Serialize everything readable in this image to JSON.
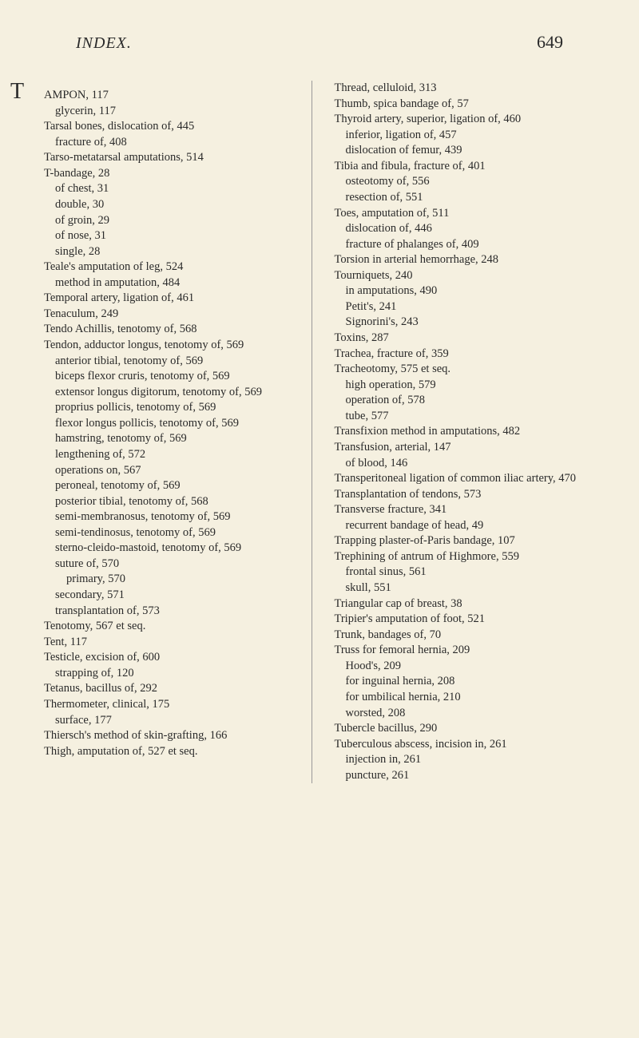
{
  "header": {
    "title": "INDEX.",
    "page_number": "649"
  },
  "styling": {
    "background_color": "#f5f0e0",
    "text_color": "#2a2a2a",
    "font_family": "Georgia, Times New Roman, serif",
    "body_font_size": 14.5,
    "header_title_size": 20,
    "page_number_size": 22,
    "initial_cap_size": 28,
    "line_height": 1.35,
    "column_separator_color": "#999"
  },
  "left_column": {
    "entries": [
      {
        "text": "TAMPON, 117",
        "initial": "T",
        "rest": "AMPON, 117",
        "level": 0,
        "first": true
      },
      {
        "text": "glycerin, 117",
        "level": 1
      },
      {
        "text": "Tarsal bones, dislocation of, 445",
        "level": 0
      },
      {
        "text": "fracture of, 408",
        "level": 1
      },
      {
        "text": "Tarso-metatarsal amputations, 514",
        "level": 0
      },
      {
        "text": "T-bandage, 28",
        "level": 0
      },
      {
        "text": "of chest, 31",
        "level": 1
      },
      {
        "text": "double, 30",
        "level": 1
      },
      {
        "text": "of groin, 29",
        "level": 1
      },
      {
        "text": "of nose, 31",
        "level": 1
      },
      {
        "text": "single, 28",
        "level": 1
      },
      {
        "text": "Teale's amputation of leg, 524",
        "level": 0
      },
      {
        "text": "method in amputation, 484",
        "level": 1
      },
      {
        "text": "Temporal artery, ligation of, 461",
        "level": 0
      },
      {
        "text": "Tenaculum, 249",
        "level": 0
      },
      {
        "text": "Tendo Achillis, tenotomy of, 568",
        "level": 0
      },
      {
        "text": "Tendon, adductor longus, tenotomy of, 569",
        "level": 0
      },
      {
        "text": "anterior tibial, tenotomy of, 569",
        "level": 1
      },
      {
        "text": "biceps flexor cruris, tenotomy of, 569",
        "level": 1
      },
      {
        "text": "extensor longus digitorum, tenotomy of, 569",
        "level": 1
      },
      {
        "text": "proprius pollicis, tenotomy of, 569",
        "level": 1
      },
      {
        "text": "flexor longus pollicis, tenotomy of, 569",
        "level": 1
      },
      {
        "text": "hamstring, tenotomy of, 569",
        "level": 1
      },
      {
        "text": "lengthening of, 572",
        "level": 1
      },
      {
        "text": "operations on, 567",
        "level": 1
      },
      {
        "text": "peroneal, tenotomy of, 569",
        "level": 1
      },
      {
        "text": "posterior tibial, tenotomy of, 568",
        "level": 1
      },
      {
        "text": "semi-membranosus, tenotomy of, 569",
        "level": 1
      },
      {
        "text": "semi-tendinosus, tenotomy of, 569",
        "level": 1
      },
      {
        "text": "sterno-cleido-mastoid, tenotomy of, 569",
        "level": 1
      },
      {
        "text": "suture of, 570",
        "level": 1
      },
      {
        "text": "primary, 570",
        "level": 2
      },
      {
        "text": "secondary, 571",
        "level": 1
      },
      {
        "text": "transplantation of, 573",
        "level": 1
      },
      {
        "text": "Tenotomy, 567 et seq.",
        "level": 0
      },
      {
        "text": "Tent, 117",
        "level": 0
      },
      {
        "text": "Testicle, excision of, 600",
        "level": 0
      },
      {
        "text": "strapping of, 120",
        "level": 1
      },
      {
        "text": "Tetanus, bacillus of, 292",
        "level": 0
      },
      {
        "text": "Thermometer, clinical, 175",
        "level": 0
      },
      {
        "text": "surface, 177",
        "level": 1
      },
      {
        "text": "Thiersch's method of skin-grafting, 166",
        "level": 0
      },
      {
        "text": "Thigh, amputation of, 527 et seq.",
        "level": 0
      }
    ]
  },
  "right_column": {
    "entries": [
      {
        "text": "Thread, celluloid, 313",
        "level": 0
      },
      {
        "text": "Thumb, spica bandage of, 57",
        "level": 0
      },
      {
        "text": "Thyroid artery, superior, ligation of, 460",
        "level": 0
      },
      {
        "text": "inferior, ligation of, 457",
        "level": 1
      },
      {
        "text": "dislocation of femur, 439",
        "level": 1
      },
      {
        "text": "Tibia and fibula, fracture of, 401",
        "level": 0
      },
      {
        "text": "osteotomy of, 556",
        "level": 1
      },
      {
        "text": "resection of, 551",
        "level": 1
      },
      {
        "text": "Toes, amputation of, 511",
        "level": 0
      },
      {
        "text": "dislocation of, 446",
        "level": 1
      },
      {
        "text": "fracture of phalanges of, 409",
        "level": 1
      },
      {
        "text": "Torsion in arterial hemorrhage, 248",
        "level": 0
      },
      {
        "text": "Tourniquets, 240",
        "level": 0
      },
      {
        "text": "in amputations, 490",
        "level": 1
      },
      {
        "text": "Petit's, 241",
        "level": 1
      },
      {
        "text": "Signorini's, 243",
        "level": 1
      },
      {
        "text": "Toxins, 287",
        "level": 0
      },
      {
        "text": "Trachea, fracture of, 359",
        "level": 0
      },
      {
        "text": "Tracheotomy, 575 et seq.",
        "level": 0
      },
      {
        "text": "high operation, 579",
        "level": 1
      },
      {
        "text": "operation of, 578",
        "level": 1
      },
      {
        "text": "tube, 577",
        "level": 1
      },
      {
        "text": "Transfixion method in amputations, 482",
        "level": 0
      },
      {
        "text": "Transfusion, arterial, 147",
        "level": 0
      },
      {
        "text": "of blood, 146",
        "level": 1
      },
      {
        "text": "Transperitoneal ligation of common iliac artery, 470",
        "level": 0
      },
      {
        "text": "Transplantation of tendons, 573",
        "level": 0
      },
      {
        "text": "Transverse fracture, 341",
        "level": 0
      },
      {
        "text": "recurrent bandage of head, 49",
        "level": 1
      },
      {
        "text": "Trapping plaster-of-Paris bandage, 107",
        "level": 0
      },
      {
        "text": "Trephining of antrum of Highmore, 559",
        "level": 0
      },
      {
        "text": "frontal sinus, 561",
        "level": 1
      },
      {
        "text": "skull, 551",
        "level": 1
      },
      {
        "text": "Triangular cap of breast, 38",
        "level": 0
      },
      {
        "text": "Tripier's amputation of foot, 521",
        "level": 0
      },
      {
        "text": "Trunk, bandages of, 70",
        "level": 0
      },
      {
        "text": "Truss for femoral hernia, 209",
        "level": 0
      },
      {
        "text": "Hood's, 209",
        "level": 1
      },
      {
        "text": "for inguinal hernia, 208",
        "level": 1
      },
      {
        "text": "for umbilical hernia, 210",
        "level": 1
      },
      {
        "text": "worsted, 208",
        "level": 1
      },
      {
        "text": "Tubercle bacillus, 290",
        "level": 0
      },
      {
        "text": "Tuberculous abscess, incision in, 261",
        "level": 0
      },
      {
        "text": "injection in, 261",
        "level": 1
      },
      {
        "text": "puncture, 261",
        "level": 1
      }
    ]
  }
}
